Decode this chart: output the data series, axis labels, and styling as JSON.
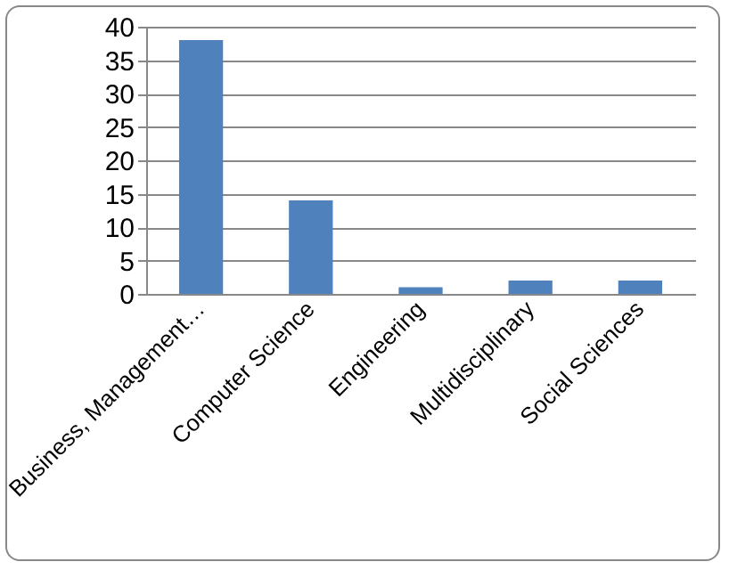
{
  "chart_data": {
    "type": "bar",
    "categories": [
      "Business, Management…",
      "Computer Science",
      "Engineering",
      "Multidisciplinary",
      "Social Sciences"
    ],
    "values": [
      38,
      14,
      1,
      2,
      2
    ],
    "color": "#4f81bd",
    "ylim": [
      0,
      40
    ],
    "yticks": [
      0,
      5,
      10,
      15,
      20,
      25,
      30,
      35,
      40
    ],
    "grid": "y"
  }
}
